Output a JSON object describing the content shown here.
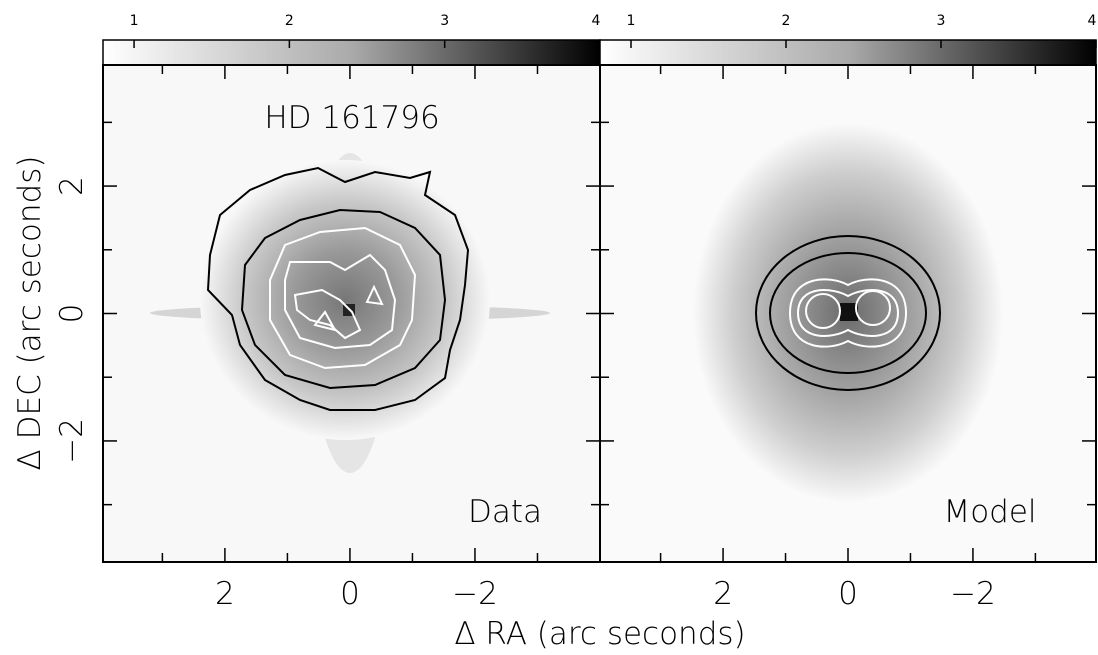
{
  "chart_data": [
    {
      "type": "image",
      "title": "HD 161796",
      "label": "Data",
      "xlabel": "Δ RA (arc seconds)",
      "ylabel": "Δ DEC (arc seconds)",
      "xlim": [
        3.95,
        -4
      ],
      "ylim": [
        -3.9,
        3.9
      ],
      "xticks": [
        2,
        0,
        {
          "value": -2,
          "label": "−2"
        }
      ],
      "yticks": [
        2,
        0,
        {
          "value": -2,
          "label": "−2"
        }
      ],
      "xminor": [
        3,
        1,
        -1,
        -3
      ],
      "yminor": [
        3,
        1,
        -1,
        -3
      ],
      "colorbar": {
        "lim": [
          0.8,
          4
        ],
        "ticks": [
          1,
          2,
          3,
          4
        ]
      }
    },
    {
      "type": "image",
      "label": "Model",
      "xlim": [
        3.97,
        -3.97
      ],
      "ylim": [
        -3.9,
        3.9
      ],
      "xticks": [
        2,
        0,
        {
          "value": -2,
          "label": "−2"
        }
      ],
      "yticks": [
        2,
        0,
        -2
      ],
      "xminor": [
        3,
        1,
        -1,
        -3
      ],
      "yminor": [
        3,
        1,
        -1,
        -3
      ],
      "colorbar": {
        "lim": [
          0.8,
          4
        ],
        "ticks": [
          1,
          2,
          3,
          4
        ]
      }
    }
  ]
}
